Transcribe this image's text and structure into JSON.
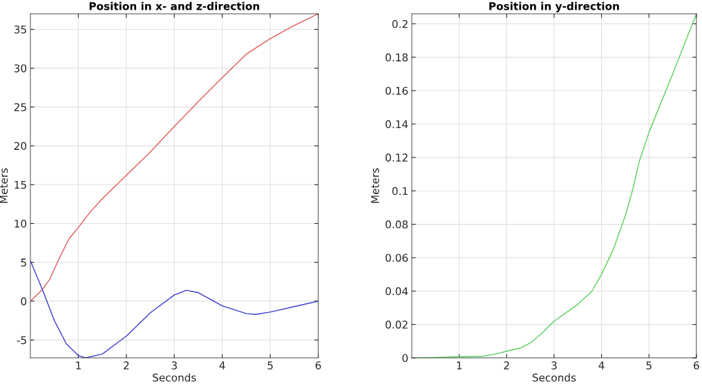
{
  "chart_data": [
    {
      "type": "line",
      "title": "Position in x- and z-direction",
      "xlabel": "Seconds",
      "ylabel": "Meters",
      "xlim": [
        0,
        6
      ],
      "xticks": [
        1,
        2,
        3,
        4,
        5,
        6
      ],
      "ylim": [
        -7.3,
        37
      ],
      "yticks": [
        -5,
        0,
        5,
        10,
        15,
        20,
        25,
        30,
        35
      ],
      "grid": true,
      "legend": false,
      "series": [
        {
          "color": "#e05a5a",
          "x": [
            0,
            0.25,
            0.4,
            0.6,
            0.8,
            1,
            1.25,
            1.5,
            2,
            2.5,
            3,
            3.5,
            4,
            4.5,
            5,
            5.5,
            6
          ],
          "values": [
            0,
            1.5,
            2.8,
            5.5,
            8,
            9.5,
            11.5,
            13.2,
            16.2,
            19.2,
            22.5,
            25.7,
            28.8,
            31.8,
            33.8,
            35.5,
            37
          ]
        },
        {
          "color": "#3a3ad0",
          "x": [
            0,
            0.25,
            0.5,
            0.75,
            1,
            1.15,
            1.5,
            2,
            2.5,
            3,
            3.25,
            3.5,
            4,
            4.5,
            4.7,
            5,
            5.5,
            6
          ],
          "values": [
            5.2,
            1.5,
            -2.5,
            -5.5,
            -7.0,
            -7.3,
            -6.8,
            -4.5,
            -1.5,
            0.8,
            1.4,
            1.1,
            -0.6,
            -1.6,
            -1.7,
            -1.4,
            -0.7,
            0
          ]
        }
      ]
    },
    {
      "type": "line",
      "title": "Position in y-direction",
      "xlabel": "Seconds",
      "ylabel": "Meters",
      "xlim": [
        0,
        6
      ],
      "xticks": [
        1,
        2,
        3,
        4,
        5,
        6
      ],
      "ylim": [
        0,
        0.206
      ],
      "yticks": [
        0,
        0.02,
        0.04,
        0.06,
        0.08,
        0.1,
        0.12,
        0.14,
        0.16,
        0.18,
        0.2
      ],
      "grid": true,
      "legend": false,
      "series": [
        {
          "color": "#5ad05a",
          "x": [
            0,
            0.5,
            1,
            1.5,
            1.8,
            2,
            2.3,
            2.5,
            2.75,
            3,
            3.5,
            3.8,
            4,
            4.25,
            4.5,
            4.65,
            4.8,
            5,
            5.5,
            6
          ],
          "values": [
            0,
            0.0002,
            0.0007,
            0.001,
            0.0025,
            0.004,
            0.006,
            0.009,
            0.015,
            0.022,
            0.032,
            0.04,
            0.05,
            0.065,
            0.085,
            0.1,
            0.118,
            0.135,
            0.17,
            0.206
          ]
        }
      ]
    }
  ]
}
